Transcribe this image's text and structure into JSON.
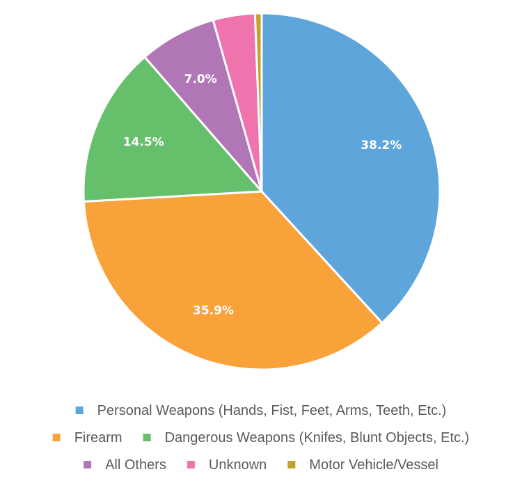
{
  "chart_data": {
    "type": "pie",
    "start_angle_deg": 0,
    "direction": "clockwise",
    "legend_position": "bottom",
    "slices": [
      {
        "name": "Personal Weapons (Hands, Fist, Feet, Arms, Teeth, Etc.)",
        "value": 38.2,
        "label": "38.2%",
        "color": "#5ea5db"
      },
      {
        "name": "Firearm",
        "value": 35.9,
        "label": "35.9%",
        "color": "#f9a23a"
      },
      {
        "name": "Dangerous Weapons (Knifes, Blunt Objects, Etc.)",
        "value": 14.5,
        "label": "14.5%",
        "color": "#66bf6b"
      },
      {
        "name": "All Others",
        "value": 7.0,
        "label": "7.0%",
        "color": "#b176b5"
      },
      {
        "name": "Unknown",
        "value": 3.8,
        "label": "",
        "color": "#ef74ae"
      },
      {
        "name": "Motor Vehicle/Vessel",
        "value": 0.6,
        "label": "",
        "color": "#c4a12e"
      }
    ],
    "legend_rows": [
      [
        0
      ],
      [
        1,
        2
      ],
      [
        3,
        4,
        5
      ]
    ]
  }
}
